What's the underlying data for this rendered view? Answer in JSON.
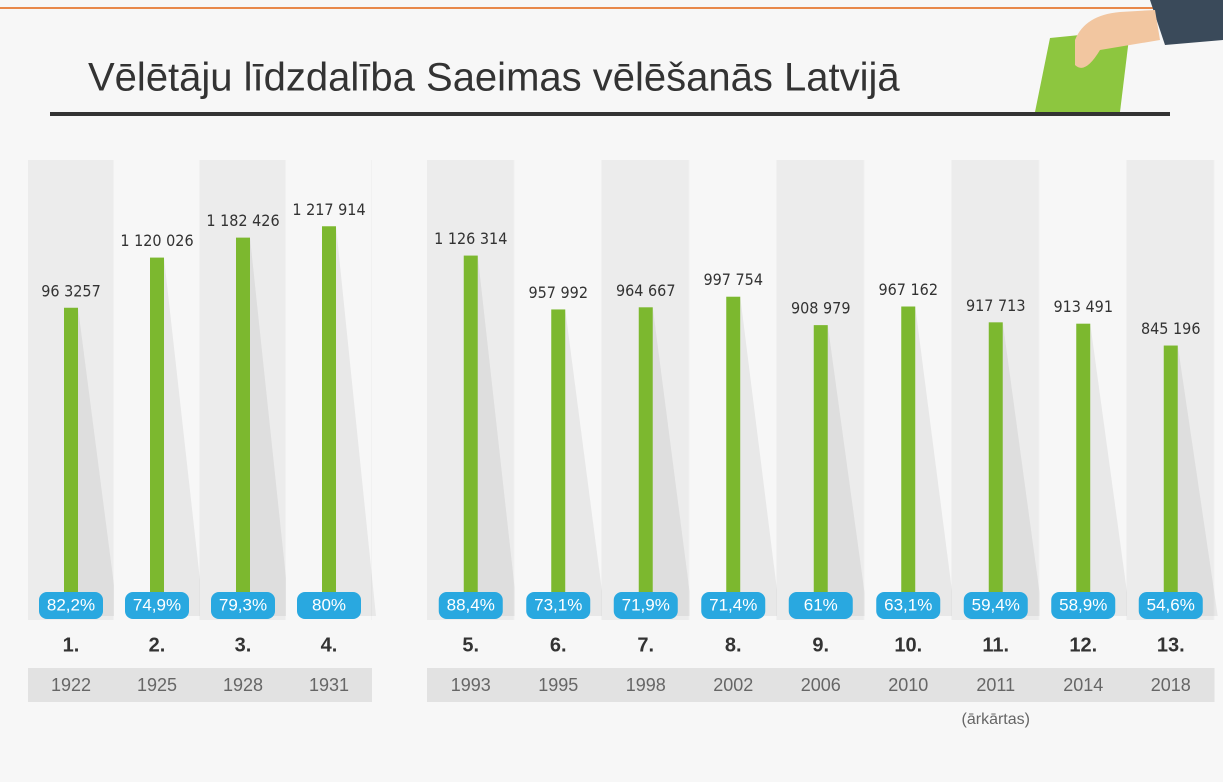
{
  "title": "Vēlētāju līdzdalība Saeimas vēlēšanās Latvijā",
  "chart_data": [
    {
      "type": "bar",
      "color": "#7cb82f",
      "ylim": [
        0,
        1400000
      ],
      "categories": [
        "1922",
        "1925",
        "1928",
        "1931"
      ],
      "sessions": [
        "1.",
        "2.",
        "3.",
        "4."
      ],
      "values": [
        963257,
        1120026,
        1182426,
        1217914
      ],
      "value_labels": [
        "96 3257",
        "1 120 026",
        "1 182 426",
        "1 217 914"
      ],
      "turnout": [
        82.2,
        74.9,
        79.3,
        80
      ],
      "turnout_labels": [
        "82,2%",
        "74,9%",
        "79,3%",
        "80%"
      ]
    },
    {
      "type": "bar",
      "color": "#7cb82f",
      "ylim": [
        0,
        1400000
      ],
      "categories": [
        "1993",
        "1995",
        "1998",
        "2002",
        "2006",
        "2010",
        "2011",
        "2014",
        "2018"
      ],
      "sessions": [
        "5.",
        "6.",
        "7.",
        "8.",
        "9.",
        "10.",
        "11.",
        "12.",
        "13."
      ],
      "values": [
        1126314,
        957992,
        964667,
        997754,
        908979,
        967162,
        917713,
        913491,
        845196
      ],
      "value_labels": [
        "1 126 314",
        "957 992",
        "964 667",
        "997 754",
        "908 979",
        "967 162",
        "917 713",
        "913 491",
        "845 196"
      ],
      "turnout": [
        88.4,
        73.1,
        71.9,
        71.4,
        61,
        63.1,
        59.4,
        58.9,
        54.6
      ],
      "turnout_labels": [
        "88,4%",
        "73,1%",
        "71,9%",
        "71,4%",
        "61%",
        "63,1%",
        "59,4%",
        "58,9%",
        "54,6%"
      ],
      "notes": [
        null,
        null,
        null,
        null,
        null,
        null,
        "(ārkārtas)",
        null,
        null
      ]
    }
  ]
}
